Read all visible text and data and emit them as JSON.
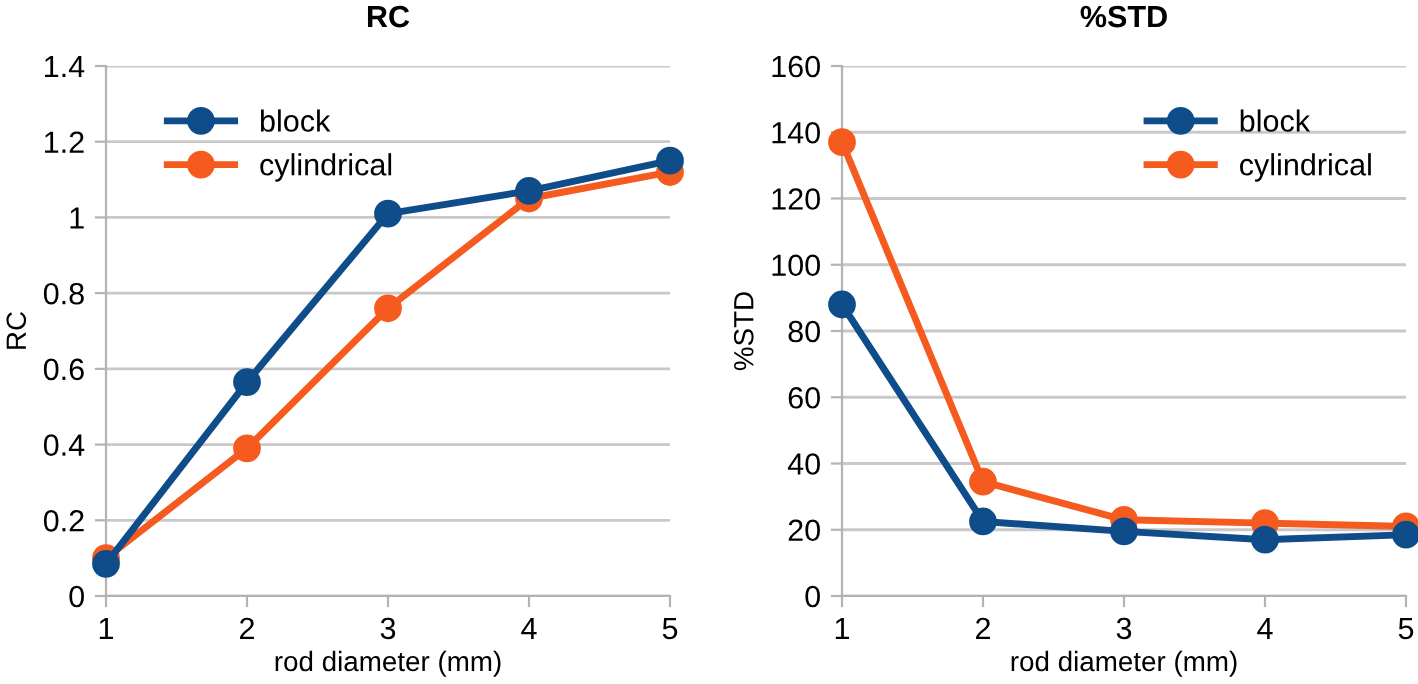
{
  "chart_data": [
    {
      "type": "line",
      "title": "RC",
      "xlabel": "rod diameter (mm)",
      "ylabel": "RC",
      "x": [
        1,
        2,
        3,
        4,
        5
      ],
      "series": [
        {
          "name": "block",
          "color": "#0f4c8a",
          "values": [
            0.085,
            0.565,
            1.01,
            1.07,
            1.15
          ]
        },
        {
          "name": "cylindrical",
          "color": "#f55a1e",
          "values": [
            0.1,
            0.39,
            0.76,
            1.05,
            1.12
          ]
        }
      ],
      "xlim": [
        1,
        5
      ],
      "xticks": [
        1,
        2,
        3,
        4,
        5
      ],
      "ylim": [
        0,
        1.4
      ],
      "yticks": [
        0,
        0.2,
        0.4,
        0.6,
        0.8,
        1,
        1.2,
        1.4
      ],
      "grid": "y",
      "legend": "top left",
      "marker": "circle",
      "line_style": "solid"
    },
    {
      "type": "line",
      "title": "%STD",
      "xlabel": "rod diameter (mm)",
      "ylabel": "%STD",
      "x": [
        1,
        2,
        3,
        4,
        5
      ],
      "series": [
        {
          "name": "block",
          "color": "#0f4c8a",
          "values": [
            88,
            22.5,
            19.5,
            17,
            18.5
          ]
        },
        {
          "name": "cylindrical",
          "color": "#f55a1e",
          "values": [
            137,
            34.5,
            23,
            22,
            21
          ]
        }
      ],
      "xlim": [
        1,
        5
      ],
      "xticks": [
        1,
        2,
        3,
        4,
        5
      ],
      "ylim": [
        0,
        160
      ],
      "yticks": [
        0,
        20,
        40,
        60,
        80,
        100,
        120,
        140,
        160
      ],
      "grid": "y",
      "legend": "top right",
      "marker": "circle",
      "line_style": "solid"
    }
  ]
}
